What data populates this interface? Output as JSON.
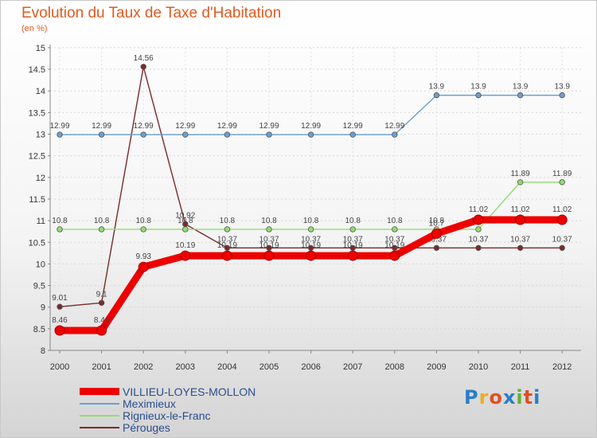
{
  "chart_data": {
    "type": "line",
    "title": "Evolution du Taux de Taxe d'Habitation",
    "subtitle": "(en %)",
    "xlabel": "",
    "ylabel": "",
    "categories": [
      "2000",
      "2001",
      "2002",
      "2003",
      "2004",
      "2005",
      "2006",
      "2007",
      "2008",
      "2009",
      "2010",
      "2011",
      "2012"
    ],
    "ylim": [
      8,
      15
    ],
    "yticks": [
      "8",
      "8.5",
      "9",
      "9.5",
      "10",
      "10.5",
      "11",
      "11.5",
      "12",
      "12.5",
      "13",
      "13.5",
      "14",
      "14.5",
      "15"
    ],
    "grid": true,
    "legend_position": "bottom-left",
    "series": [
      {
        "name": "Pérouges",
        "color": "#7a2a2a",
        "values": [
          9.01,
          9.1,
          14.56,
          10.92,
          10.37,
          10.37,
          10.37,
          10.37,
          10.37,
          10.37,
          10.37,
          10.37,
          10.37
        ],
        "labels": [
          "9.01",
          "9.1",
          "14.56",
          "10.92",
          "10.37",
          "10.37",
          "10.37",
          "10.37",
          "10.37",
          "10.37",
          "10.37",
          "10.37",
          "10.37"
        ]
      },
      {
        "name": "Meximieux",
        "color": "#6aa0d0",
        "values": [
          12.99,
          12.99,
          12.99,
          12.99,
          12.99,
          12.99,
          12.99,
          12.99,
          12.99,
          13.9,
          13.9,
          13.9,
          13.9
        ],
        "labels": [
          "12.99",
          "12.99",
          "12.99",
          "12.99",
          "12.99",
          "12.99",
          "12.99",
          "12.99",
          "12.99",
          "13.9",
          "13.9",
          "13.9",
          "13.9"
        ]
      },
      {
        "name": "Rignieux-le-Franc",
        "color": "#90dd70",
        "values": [
          10.8,
          10.8,
          10.8,
          10.8,
          10.8,
          10.8,
          10.8,
          10.8,
          10.8,
          10.8,
          10.8,
          11.89,
          11.89
        ],
        "labels": [
          "10.8",
          "10.8",
          "10.8",
          "10.8",
          "10.8",
          "10.8",
          "10.8",
          "10.8",
          "10.8",
          "10.8",
          "10.8",
          "11.89",
          "11.89"
        ]
      },
      {
        "name": "VILLIEU-LOYES-MOLLON",
        "color": "#ee0000",
        "values": [
          8.46,
          8.46,
          9.93,
          10.19,
          10.19,
          10.19,
          10.19,
          10.19,
          10.19,
          10.7,
          11.02,
          11.02,
          11.02
        ],
        "labels": [
          "8.46",
          "8.46",
          "9.93",
          "10.19",
          "10.19",
          "10.19",
          "10.19",
          "10.19",
          "10.19",
          "10.7",
          "11.02",
          "11.02",
          "11.02"
        ]
      }
    ]
  },
  "legend": [
    {
      "label": "VILLIEU-LOYES-MOLLON",
      "color": "#ee0000"
    },
    {
      "label": "Meximieux",
      "color": "#6aa0d0"
    },
    {
      "label": "Rignieux-le-Franc",
      "color": "#90dd70"
    },
    {
      "label": "Pérouges",
      "color": "#7a2a2a"
    }
  ],
  "logo": {
    "text": "Proxiti",
    "letters": [
      "P",
      "r",
      "o",
      "x",
      "i",
      "t",
      "i"
    ],
    "colors": [
      "#2a7ec8",
      "#e8b020",
      "#e05020",
      "#2a7ec8",
      "#60b030",
      "#e05020",
      "#2a7ec8"
    ]
  }
}
